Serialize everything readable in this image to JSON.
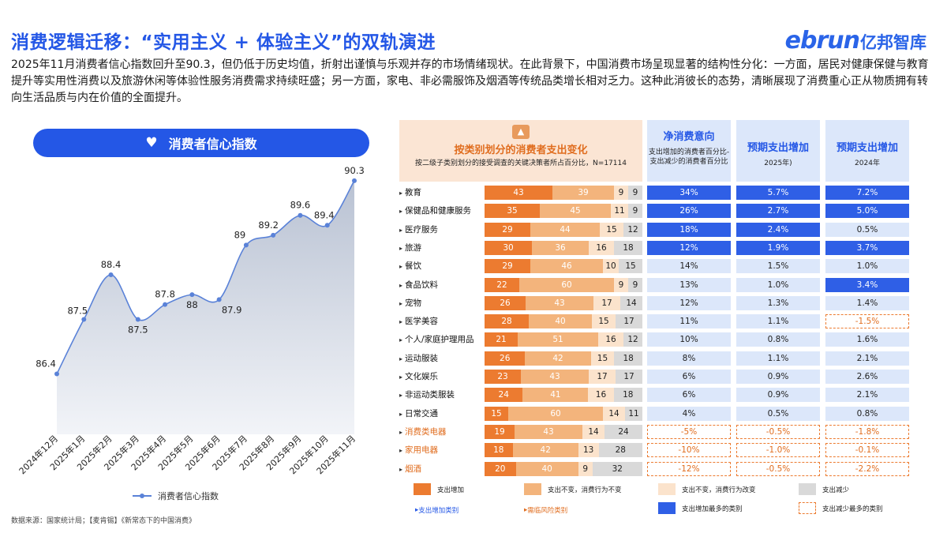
{
  "title": "消费逻辑迁移：“实用主义 + 体验主义”的双轨演进",
  "logo": {
    "en": "ebrun",
    "cn": "亿邦智库"
  },
  "intro": "2025年11月消费者信心指数回升至90.3，但仍低于历史均值，折射出谨慎与乐观并存的市场情绪现状。在此背景下，中国消费市场呈现显著的结构性分化：一方面，居民对健康保健与教育提升等实用性消费以及旅游休闲等体验性服务消费需求持续旺盛；另一方面，家电、非必需服饰及烟酒等传统品类增长相对乏力。这种此消彼长的态势，清晰展现了消费重心正从物质拥有转向生活品质与内在价值的全面提升。",
  "line_chart": {
    "pill_title": "消费者信心指数",
    "legend": "消费者信心指数",
    "series_color": "#5a82d8"
  },
  "source": "数据来源：国家统计局；【麦肯锡】《新常态下的中国消费》",
  "table": {
    "header": {
      "title": "按类别划分的消费者支出变化",
      "sub": "按二级子类别划分的接受调查的关键决策者所占百分比，N=17114",
      "col1_title": "净消费意向",
      "col1_sub": "支出增加的消费者百分比-支出减少的消费者百分比",
      "col2_title": "预期支出增加",
      "col2_sub": "2025年)",
      "col3_title": "预期支出增加",
      "col3_sub": "2024年"
    },
    "rows": [
      {
        "cat": "教育",
        "s": [
          43,
          39,
          9,
          9
        ],
        "net": "34%",
        "e25": "5.7%",
        "e24": "7.2%",
        "st": [
          "hi",
          "hi",
          "hi"
        ],
        "warn": false
      },
      {
        "cat": "保健品和健康服务",
        "s": [
          35,
          45,
          11,
          9
        ],
        "net": "26%",
        "e25": "2.7%",
        "e24": "5.0%",
        "st": [
          "hi",
          "hi",
          "hi"
        ],
        "warn": false
      },
      {
        "cat": "医疗服务",
        "s": [
          29,
          44,
          15,
          12
        ],
        "net": "18%",
        "e25": "2.4%",
        "e24": "0.5%",
        "st": [
          "hi",
          "hi",
          ""
        ],
        "warn": false
      },
      {
        "cat": "旅游",
        "s": [
          30,
          36,
          16,
          18
        ],
        "net": "12%",
        "e25": "1.9%",
        "e24": "3.7%",
        "st": [
          "hi",
          "hi",
          "hi"
        ],
        "warn": false
      },
      {
        "cat": "餐饮",
        "s": [
          29,
          46,
          10,
          15
        ],
        "net": "14%",
        "e25": "1.5%",
        "e24": "1.0%",
        "st": [
          "",
          "",
          ""
        ],
        "warn": false
      },
      {
        "cat": "食品饮料",
        "s": [
          22,
          60,
          9,
          9
        ],
        "net": "13%",
        "e25": "1.0%",
        "e24": "3.4%",
        "st": [
          "",
          "",
          "hi"
        ],
        "warn": false
      },
      {
        "cat": "宠物",
        "s": [
          26,
          43,
          17,
          14
        ],
        "net": "12%",
        "e25": "1.3%",
        "e24": "1.4%",
        "st": [
          "",
          "",
          ""
        ],
        "warn": false
      },
      {
        "cat": "医学美容",
        "s": [
          28,
          40,
          15,
          17
        ],
        "net": "11%",
        "e25": "1.1%",
        "e24": "-1.5%",
        "st": [
          "",
          "",
          "lo"
        ],
        "warn": false
      },
      {
        "cat": "个人/家庭护理用品",
        "s": [
          21,
          51,
          16,
          12
        ],
        "net": "10%",
        "e25": "0.8%",
        "e24": "1.6%",
        "st": [
          "",
          "",
          ""
        ],
        "warn": false
      },
      {
        "cat": "运动服装",
        "s": [
          26,
          42,
          15,
          18
        ],
        "net": "8%",
        "e25": "1.1%",
        "e24": "2.1%",
        "st": [
          "",
          "",
          ""
        ],
        "warn": false
      },
      {
        "cat": "文化娱乐",
        "s": [
          23,
          43,
          17,
          17
        ],
        "net": "6%",
        "e25": "0.9%",
        "e24": "2.6%",
        "st": [
          "",
          "",
          ""
        ],
        "warn": false
      },
      {
        "cat": "非运动类服装",
        "s": [
          24,
          41,
          16,
          18
        ],
        "net": "6%",
        "e25": "0.9%",
        "e24": "2.1%",
        "st": [
          "",
          "",
          ""
        ],
        "warn": false
      },
      {
        "cat": "日常交通",
        "s": [
          15,
          60,
          14,
          11
        ],
        "net": "4%",
        "e25": "0.5%",
        "e24": "0.8%",
        "st": [
          "",
          "",
          ""
        ],
        "warn": false
      },
      {
        "cat": "消费类电器",
        "s": [
          19,
          43,
          14,
          24
        ],
        "net": "-5%",
        "e25": "-0.5%",
        "e24": "-1.8%",
        "st": [
          "lo",
          "lo",
          "lo"
        ],
        "warn": true
      },
      {
        "cat": "家用电器",
        "s": [
          18,
          42,
          13,
          28
        ],
        "net": "-10%",
        "e25": "-1.0%",
        "e24": "-0.1%",
        "st": [
          "lo",
          "lo",
          "lo"
        ],
        "warn": true
      },
      {
        "cat": "烟酒",
        "s": [
          20,
          40,
          9,
          32
        ],
        "net": "-12%",
        "e25": "-0.5%",
        "e24": "-2.2%",
        "st": [
          "lo",
          "lo",
          "lo"
        ],
        "warn": true
      }
    ],
    "legend": {
      "s1": "支出增加",
      "s2": "支出不变，消费行为不变",
      "s3": "支出不变，消费行为改变",
      "s4": "支出减少",
      "tri_blue": "支出增加类别",
      "tri_orange": "需临风险类别",
      "hi": "支出增加最多的类别",
      "lo": "支出减少最多的类别"
    },
    "colors": {
      "s1": "#ec7b30",
      "s2": "#f3b47c",
      "s3": "#fbe3cc",
      "s4": "#d9d9d9",
      "hi": "#2f5fe6",
      "base": "#dce7fa"
    }
  },
  "chart_data": [
    {
      "type": "area",
      "title": "消费者信心指数",
      "categories": [
        "2024年12月",
        "2025年1月",
        "2025年2月",
        "2025年3月",
        "2025年4月",
        "2025年5月",
        "2025年6月",
        "2025年7月",
        "2025年8月",
        "2025年9月",
        "2025年10月",
        "2025年11月"
      ],
      "series": [
        {
          "name": "消费者信心指数",
          "values": [
            86.4,
            87.5,
            88.4,
            87.5,
            87.8,
            88,
            87.9,
            89,
            89.2,
            89.6,
            89.4,
            90.3
          ]
        }
      ],
      "ylim": [
        85.5,
        90.6
      ],
      "legend": "bottom"
    },
    {
      "type": "bar",
      "title": "按类别划分的消费者支出变化",
      "categories": [
        "教育",
        "保健品和健康服务",
        "医疗服务",
        "旅游",
        "餐饮",
        "食品饮料",
        "宠物",
        "医学美容",
        "个人/家庭护理用品",
        "运动服装",
        "文化娱乐",
        "非运动类服装",
        "日常交通",
        "消费类电器",
        "家用电器",
        "烟酒"
      ],
      "series": [
        {
          "name": "支出增加",
          "values": [
            43,
            35,
            29,
            30,
            29,
            22,
            26,
            28,
            21,
            26,
            23,
            24,
            15,
            19,
            18,
            20
          ]
        },
        {
          "name": "支出不变，消费行为不变",
          "values": [
            39,
            45,
            44,
            36,
            46,
            60,
            43,
            40,
            51,
            42,
            43,
            41,
            60,
            43,
            42,
            40
          ]
        },
        {
          "name": "支出不变，消费行为改变",
          "values": [
            9,
            11,
            15,
            16,
            10,
            9,
            17,
            15,
            16,
            15,
            17,
            16,
            14,
            14,
            13,
            9
          ]
        },
        {
          "name": "支出减少",
          "values": [
            9,
            9,
            12,
            18,
            15,
            9,
            14,
            17,
            12,
            18,
            17,
            18,
            11,
            24,
            28,
            32
          ]
        }
      ],
      "legend": "bottom"
    }
  ]
}
